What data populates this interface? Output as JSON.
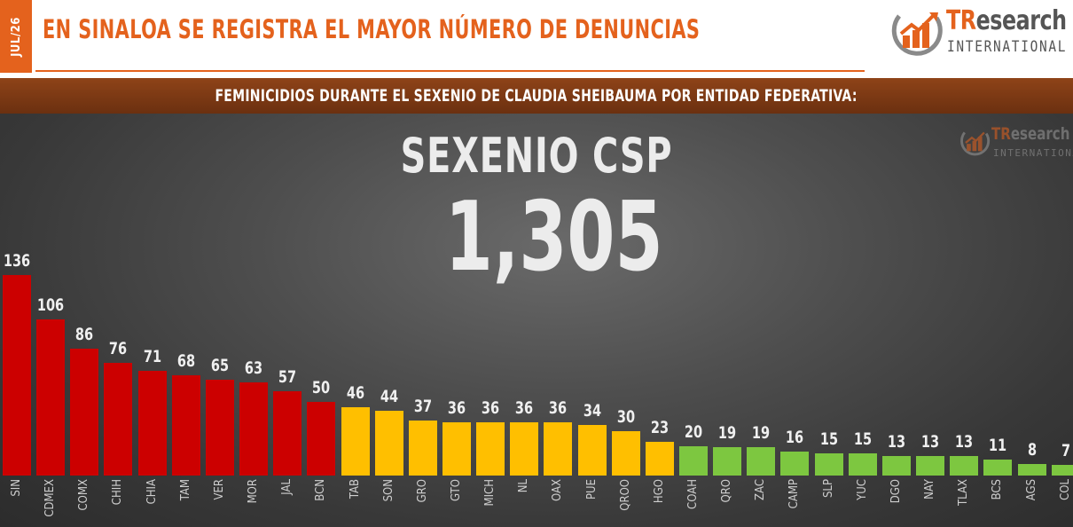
{
  "header": {
    "date_tab": "JUL/26",
    "title": "EN SINALOA SE REGISTRA EL MAYOR NÚMERO DE DENUNCIAS",
    "logo_name_accent": "TR",
    "logo_name_rest": "esearch",
    "logo_sub": "INTERNATIONAL",
    "accent_color": "#e4621d"
  },
  "subtitle": "FEMINICIDIOS DURANTE EL SEXENIO DE CLAUDIA SHEIBAUMA POR ENTIDAD FEDERATIVA:",
  "watermark": {
    "name_accent": "TR",
    "name_rest": "esearch",
    "sub": "INTERNATIONAL"
  },
  "chart_data": {
    "type": "bar",
    "title": "SEXENIO CSP",
    "total": "1,305",
    "categories": [
      "SIN",
      "CDMEX",
      "COMX",
      "CHIH",
      "CHIA",
      "TAM",
      "VER",
      "MOR",
      "JAL",
      "BCN",
      "TAB",
      "SON",
      "GRO",
      "GTO",
      "MICH",
      "NL",
      "OAX",
      "PUE",
      "QROO",
      "HGO",
      "COAH",
      "QRO",
      "ZAC",
      "CAMP",
      "SLP",
      "YUC",
      "DGO",
      "NAY",
      "TLAX",
      "BCS",
      "AGS",
      "COL"
    ],
    "values": [
      136,
      106,
      86,
      76,
      71,
      68,
      65,
      63,
      57,
      50,
      46,
      44,
      37,
      36,
      36,
      36,
      36,
      34,
      30,
      23,
      20,
      19,
      19,
      16,
      15,
      15,
      13,
      13,
      13,
      11,
      8,
      7
    ],
    "colors": [
      "#cc0000",
      "#cc0000",
      "#cc0000",
      "#cc0000",
      "#cc0000",
      "#cc0000",
      "#cc0000",
      "#cc0000",
      "#cc0000",
      "#cc0000",
      "#ffbf00",
      "#ffbf00",
      "#ffbf00",
      "#ffbf00",
      "#ffbf00",
      "#ffbf00",
      "#ffbf00",
      "#ffbf00",
      "#ffbf00",
      "#ffbf00",
      "#7dc740",
      "#7dc740",
      "#7dc740",
      "#7dc740",
      "#7dc740",
      "#7dc740",
      "#7dc740",
      "#7dc740",
      "#7dc740",
      "#7dc740",
      "#7dc740",
      "#7dc740"
    ],
    "xlabel": "",
    "ylabel": "",
    "grid": false
  }
}
